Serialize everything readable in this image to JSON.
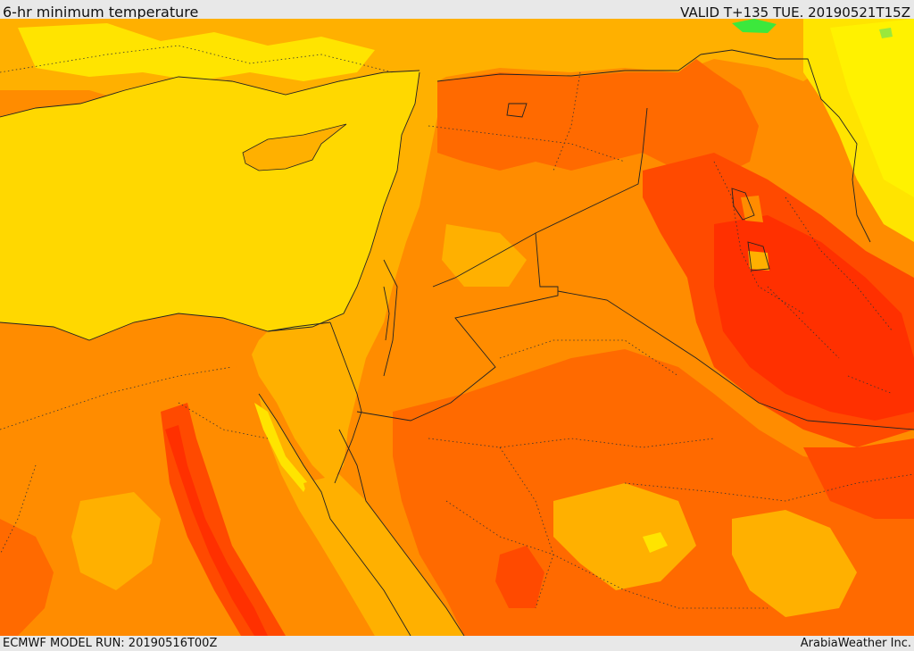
{
  "header": {
    "title": "6-hr minimum temperature",
    "valid": "VALID T+135 TUE. 20190521T15Z"
  },
  "footer": {
    "model_run": "ECMWF MODEL RUN: 20190516T00Z",
    "credit": "ArabiaWeather Inc."
  },
  "colors": {
    "sea": "#ffd800",
    "yellow_land": "#ffe400",
    "light_orange": "#ffb000",
    "orange": "#ff8c00",
    "dark_orange": "#ff6a00",
    "red_orange": "#ff4a00",
    "red": "#ff3000",
    "green": "#3ce83c",
    "border_line": "#222222"
  }
}
